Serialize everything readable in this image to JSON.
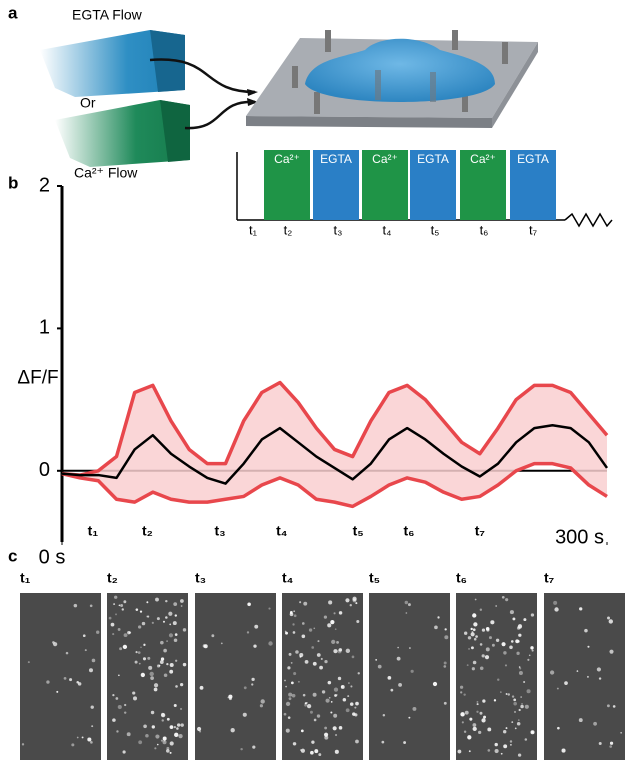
{
  "panel_labels": [
    "a",
    "b",
    "c"
  ],
  "diagram": {
    "egta_flow": "EGTA Flow",
    "or": "Or",
    "ca_flow": "Ca²⁺ Flow"
  },
  "protocol": {
    "blocks": [
      "Ca²⁺",
      "EGTA",
      "Ca²⁺",
      "EGTA",
      "Ca²⁺",
      "EGTA"
    ],
    "times": [
      "t₁",
      "t₂",
      "t₃",
      "t₄",
      "t₅",
      "t₆",
      "t₇"
    ]
  },
  "chart_data": {
    "type": "line",
    "y_label": "ΔF/F",
    "x": [
      0,
      10,
      20,
      30,
      40,
      50,
      60,
      70,
      80,
      90,
      100,
      110,
      120,
      130,
      140,
      150,
      160,
      170,
      180,
      190,
      200,
      210,
      220,
      230,
      240,
      250,
      260,
      270,
      280,
      290,
      300
    ],
    "series": [
      {
        "color": "#e8474c",
        "values": [
          -0.02,
          -0.03,
          0.0,
          0.1,
          0.55,
          0.6,
          0.35,
          0.15,
          0.05,
          0.05,
          0.35,
          0.55,
          0.62,
          0.48,
          0.3,
          0.15,
          0.1,
          0.35,
          0.55,
          0.6,
          0.5,
          0.35,
          0.2,
          0.12,
          0.3,
          0.5,
          0.6,
          0.6,
          0.55,
          0.4,
          0.25
        ]
      },
      {
        "color": "#e8474c",
        "values": [
          -0.02,
          -0.05,
          -0.07,
          -0.2,
          -0.22,
          -0.15,
          -0.2,
          -0.22,
          -0.22,
          -0.2,
          -0.18,
          -0.1,
          -0.05,
          -0.1,
          -0.2,
          -0.22,
          -0.25,
          -0.18,
          -0.1,
          -0.05,
          -0.08,
          -0.15,
          -0.2,
          -0.18,
          -0.1,
          0.0,
          0.05,
          0.05,
          0.02,
          -0.1,
          -0.18
        ]
      },
      {
        "color": "#000000",
        "values": [
          -0.02,
          -0.03,
          -0.03,
          -0.05,
          0.15,
          0.25,
          0.12,
          0.03,
          -0.05,
          -0.09,
          0.05,
          0.22,
          0.3,
          0.2,
          0.1,
          0.02,
          -0.06,
          0.05,
          0.22,
          0.3,
          0.22,
          0.12,
          0.03,
          -0.04,
          0.05,
          0.2,
          0.3,
          0.32,
          0.3,
          0.2,
          0.02
        ]
      }
    ],
    "xlim": [
      0,
      300
    ],
    "ylim": [
      -0.5,
      2
    ],
    "yticks": [
      0,
      1,
      2
    ],
    "xticks": [
      {
        "value": 0,
        "label": "0 s"
      },
      {
        "value": 300,
        "label": "300 s"
      }
    ],
    "markers": [
      {
        "value": 17,
        "label": "t₁"
      },
      {
        "value": 47,
        "label": "t₂"
      },
      {
        "value": 87,
        "label": "t₃"
      },
      {
        "value": 121,
        "label": "t₄"
      },
      {
        "value": 163,
        "label": "t₅"
      },
      {
        "value": 191,
        "label": "t₆"
      },
      {
        "value": 230,
        "label": "t₇"
      }
    ]
  },
  "images": {
    "labels": [
      "t₁",
      "t₂",
      "t₃",
      "t₄",
      "t₅",
      "t₆",
      "t₇"
    ]
  }
}
